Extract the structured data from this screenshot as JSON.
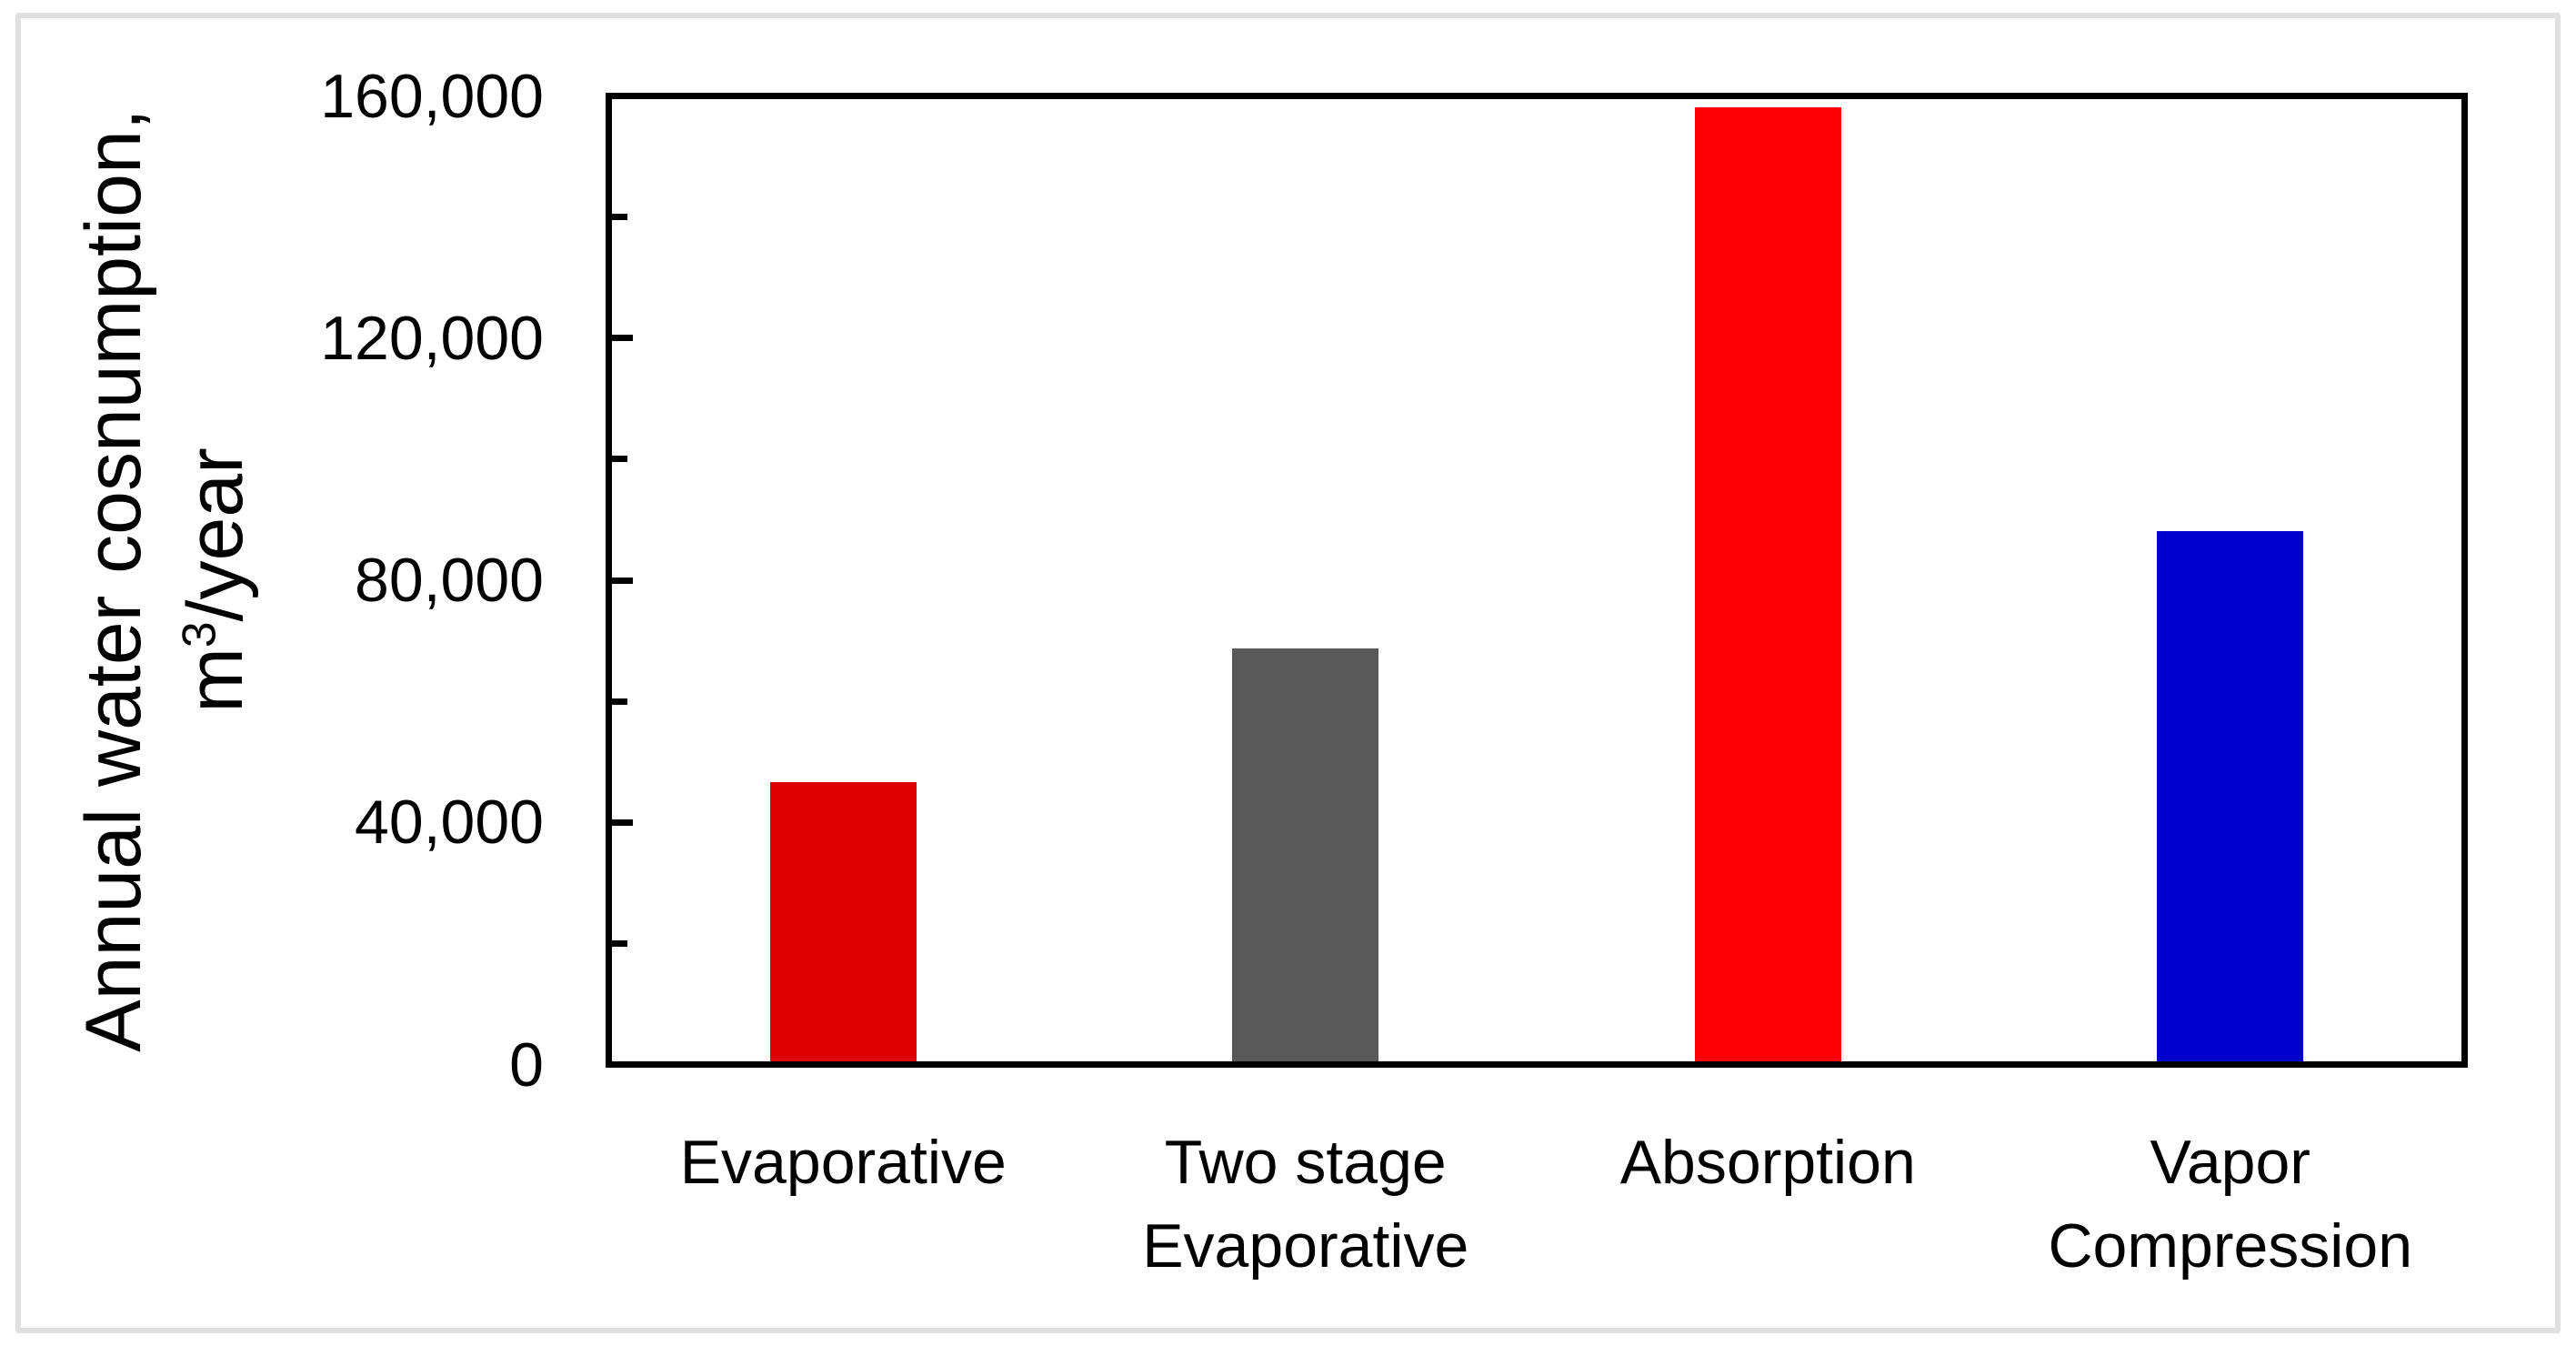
{
  "chart_data": {
    "type": "bar",
    "title": "",
    "categories": [
      "Evaporative",
      "Two stage Evaporative",
      "Absorption",
      "Vapor Compression"
    ],
    "category_lines": [
      [
        "Evaporative"
      ],
      [
        "Two stage",
        "Evaporative"
      ],
      [
        "Absorption"
      ],
      [
        "Vapor",
        "Compression"
      ]
    ],
    "category_slugs": [
      "evaporative",
      "two-stage-evaporative",
      "absorption",
      "vapor-compression"
    ],
    "values": [
      46600,
      68800,
      158100,
      88100
    ],
    "bar_colors": [
      "#DD0000",
      "#595959",
      "#FF0000",
      "#0000CC"
    ],
    "ylabel": "Annual water cosnumption, m³/year",
    "ylabel_line1": "Annual water cosnumption,",
    "ylabel_unit_base": "m",
    "ylabel_unit_sup": "3",
    "ylabel_unit_rest": "/year",
    "xlabel": "",
    "ylim": [
      0,
      160000
    ],
    "ytick_major_step": 40000,
    "ytick_minor_step": 20000,
    "ytick_labels": [
      "0",
      "40,000",
      "80,000",
      "120,000",
      "160,000"
    ],
    "grid": false,
    "legend": false,
    "axis_color": "#000000",
    "frame_color": "#E0E0E0",
    "plot_background": "#FFFFFF"
  }
}
